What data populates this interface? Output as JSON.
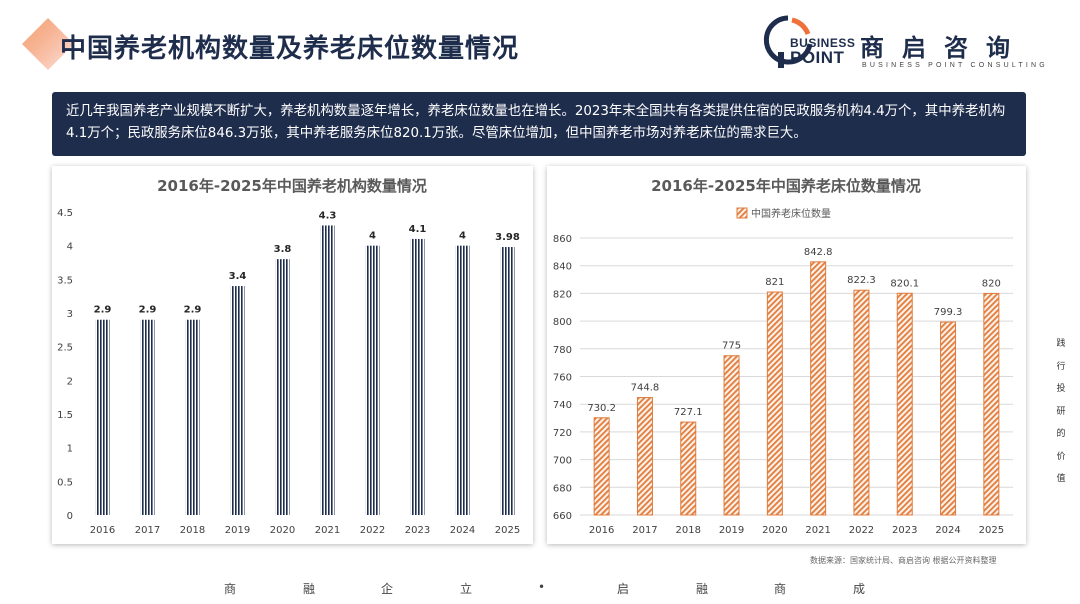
{
  "page": {
    "title": "中国养老机构数量及养老床位数量情况",
    "summary": "近几年我国养老产业规模不断扩大，养老机构数量逐年增长，养老床位数量也在增长。2023年末全国共有各类提供住宿的民政服务机构4.4万个，其中养老机构4.1万个；民政服务床位846.3万张，其中养老服务床位820.1万张。尽管床位增加，但中国养老市场对养老床位的需求巨大。",
    "source": "数据来源：国家统计局、商启咨询 根据公开资料整理"
  },
  "logo": {
    "en_line1": "BUSINESS",
    "en_line2": "POINT",
    "cn": "商启咨询",
    "sub": "BUSINESS POINT CONSULTING"
  },
  "colors": {
    "navy": "#1f2d4d",
    "orange": "#e07b3c",
    "accent": "#f0703a"
  },
  "side_text": [
    "践",
    "行",
    "投",
    "研",
    "的",
    "价",
    "值"
  ],
  "footer": [
    "商",
    "融",
    "企",
    "立",
    "•",
    "启",
    "融",
    "商",
    "成"
  ],
  "chart_data": [
    {
      "type": "bar",
      "title": "2016年-2025年中国养老机构数量情况",
      "categories": [
        "2016",
        "2017",
        "2018",
        "2019",
        "2020",
        "2021",
        "2022",
        "2023",
        "2024",
        "2025"
      ],
      "values": [
        2.9,
        2.9,
        2.9,
        3.4,
        3.8,
        4.3,
        4,
        4.1,
        4,
        3.98
      ],
      "labels": [
        "2.9",
        "2.9",
        "2.9",
        "3.4",
        "3.8",
        "4.3",
        "4",
        "4.1",
        "4",
        "3.98"
      ],
      "yticks": [
        "0",
        "0.5",
        "1",
        "1.5",
        "2",
        "2.5",
        "3",
        "3.5",
        "4",
        "4.5"
      ],
      "ylim": [
        0,
        4.5
      ],
      "xlabel": "",
      "ylabel": "",
      "legend": "",
      "color": "#1f2d4d",
      "pattern": "vertical-stripes"
    },
    {
      "type": "bar",
      "title": "2016年-2025年中国养老床位数量情况",
      "categories": [
        "2016",
        "2017",
        "2018",
        "2019",
        "2020",
        "2021",
        "2022",
        "2023",
        "2024",
        "2025"
      ],
      "values": [
        730.2,
        744.8,
        727.1,
        775,
        821,
        842.8,
        822.3,
        820.1,
        799.3,
        820
      ],
      "labels": [
        "730.2",
        "744.8",
        "727.1",
        "775",
        "821",
        "842.8",
        "822.3",
        "820.1",
        "799.3",
        "820"
      ],
      "yticks": [
        "660",
        "680",
        "700",
        "720",
        "740",
        "760",
        "780",
        "800",
        "820",
        "840",
        "860"
      ],
      "ylim": [
        660,
        860
      ],
      "xlabel": "",
      "ylabel": "",
      "legend": "中国养老床位数量",
      "legend_position": "top-center",
      "color": "#e07b3c",
      "pattern": "diagonal-hatch",
      "grid": true
    }
  ]
}
